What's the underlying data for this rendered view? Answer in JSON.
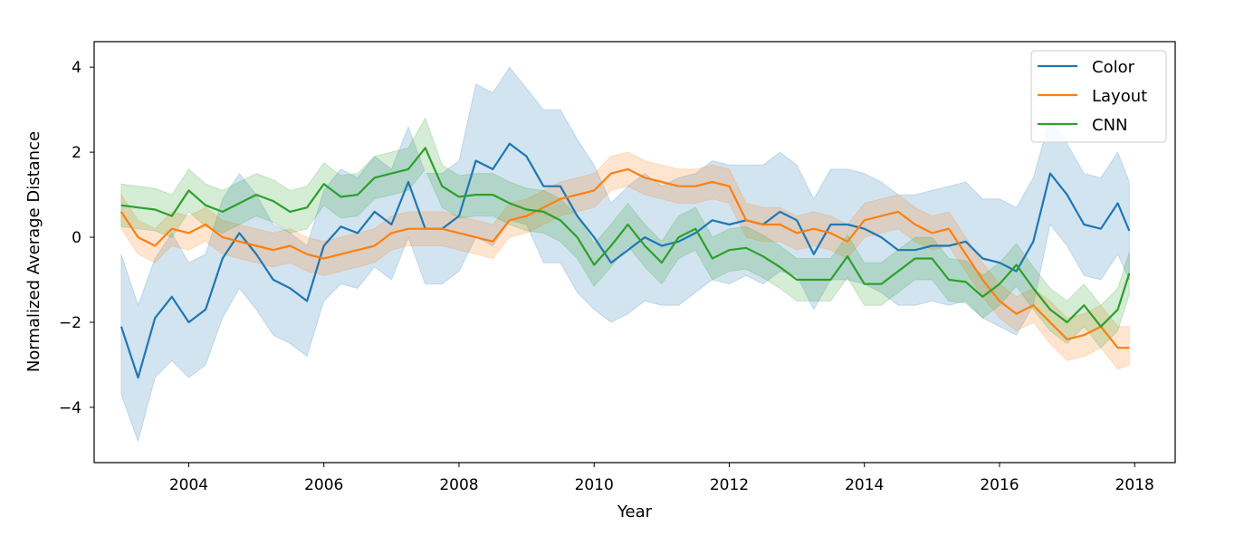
{
  "chart_data": {
    "type": "line",
    "title": "",
    "xlabel": "Year",
    "ylabel": "Normalized Average Distance",
    "xlim": [
      2002.6,
      2018.6
    ],
    "ylim": [
      -5.3,
      4.6
    ],
    "xticks": [
      2004,
      2006,
      2008,
      2010,
      2012,
      2014,
      2016,
      2018
    ],
    "xtick_labels": [
      "2004",
      "2006",
      "2008",
      "2010",
      "2012",
      "2014",
      "2016",
      "2018"
    ],
    "yticks": [
      -4,
      -2,
      0,
      2,
      4
    ],
    "ytick_labels": [
      "−4",
      "−2",
      "0",
      "2",
      "4"
    ],
    "grid": false,
    "legend_position": "top-right",
    "series": [
      {
        "name": "Color",
        "color": "#1f77b4",
        "x": [
          2003.0,
          2003.25,
          2003.5,
          2003.75,
          2004.0,
          2004.25,
          2004.5,
          2004.75,
          2005.0,
          2005.25,
          2005.5,
          2005.75,
          2006.0,
          2006.25,
          2006.5,
          2006.75,
          2007.0,
          2007.25,
          2007.5,
          2007.75,
          2008.0,
          2008.25,
          2008.5,
          2008.75,
          2009.0,
          2009.25,
          2009.5,
          2009.75,
          2010.0,
          2010.25,
          2010.5,
          2010.75,
          2011.0,
          2011.25,
          2011.5,
          2011.75,
          2012.0,
          2012.25,
          2012.5,
          2012.75,
          2013.0,
          2013.25,
          2013.5,
          2013.75,
          2014.0,
          2014.25,
          2014.5,
          2014.75,
          2015.0,
          2015.25,
          2015.5,
          2015.75,
          2016.0,
          2016.25,
          2016.5,
          2016.75,
          2017.0,
          2017.25,
          2017.5,
          2017.75,
          2017.92
        ],
        "y": [
          -2.1,
          -3.3,
          -1.9,
          -1.4,
          -2.0,
          -1.7,
          -0.5,
          0.1,
          -0.4,
          -1.0,
          -1.2,
          -1.5,
          -0.2,
          0.25,
          0.1,
          0.6,
          0.3,
          1.3,
          0.2,
          0.2,
          0.5,
          1.8,
          1.6,
          2.2,
          1.9,
          1.2,
          1.2,
          0.5,
          0.0,
          -0.6,
          -0.3,
          0.0,
          -0.2,
          -0.1,
          0.1,
          0.4,
          0.3,
          0.4,
          0.3,
          0.6,
          0.4,
          -0.4,
          0.3,
          0.3,
          0.2,
          0.0,
          -0.3,
          -0.3,
          -0.2,
          -0.2,
          -0.1,
          -0.5,
          -0.6,
          -0.8,
          -0.1,
          1.5,
          1.0,
          0.3,
          0.2,
          0.8,
          0.15
        ],
        "lower": [
          -3.7,
          -4.8,
          -3.3,
          -2.9,
          -3.3,
          -3.0,
          -1.9,
          -1.2,
          -1.7,
          -2.3,
          -2.5,
          -2.8,
          -1.5,
          -1.1,
          -1.2,
          -0.7,
          -1.0,
          0.0,
          -1.1,
          -1.1,
          -0.8,
          0.0,
          -0.2,
          0.4,
          0.3,
          -0.6,
          -0.6,
          -1.3,
          -1.7,
          -2.0,
          -1.8,
          -1.5,
          -1.6,
          -1.6,
          -1.3,
          -1.0,
          -1.1,
          -0.9,
          -1.1,
          -0.8,
          -0.9,
          -1.7,
          -1.0,
          -1.0,
          -1.1,
          -1.3,
          -1.6,
          -1.6,
          -1.5,
          -1.6,
          -1.5,
          -1.9,
          -2.1,
          -2.3,
          -1.6,
          0.3,
          -0.2,
          -0.9,
          -1.0,
          -0.4,
          -1.0
        ],
        "upper": [
          -0.4,
          -1.6,
          -0.5,
          0.1,
          -0.6,
          -0.4,
          0.9,
          1.5,
          1.0,
          0.3,
          0.1,
          -0.2,
          1.1,
          1.6,
          1.4,
          1.9,
          1.6,
          2.6,
          1.5,
          1.5,
          1.8,
          3.6,
          3.4,
          4.0,
          3.5,
          3.0,
          3.0,
          2.3,
          1.7,
          0.8,
          1.2,
          1.5,
          1.2,
          1.4,
          1.5,
          1.8,
          1.7,
          1.7,
          1.7,
          2.0,
          1.7,
          0.9,
          1.6,
          1.6,
          1.5,
          1.3,
          1.0,
          1.0,
          1.1,
          1.2,
          1.3,
          0.9,
          0.9,
          0.7,
          1.4,
          2.8,
          2.2,
          1.5,
          1.4,
          2.0,
          1.3
        ]
      },
      {
        "name": "Layout",
        "color": "#ff7f0e",
        "x": [
          2003.0,
          2003.25,
          2003.5,
          2003.75,
          2004.0,
          2004.25,
          2004.5,
          2004.75,
          2005.0,
          2005.25,
          2005.5,
          2005.75,
          2006.0,
          2006.25,
          2006.5,
          2006.75,
          2007.0,
          2007.25,
          2007.5,
          2007.75,
          2008.0,
          2008.25,
          2008.5,
          2008.75,
          2009.0,
          2009.25,
          2009.5,
          2009.75,
          2010.0,
          2010.25,
          2010.5,
          2010.75,
          2011.0,
          2011.25,
          2011.5,
          2011.75,
          2012.0,
          2012.25,
          2012.5,
          2012.75,
          2013.0,
          2013.25,
          2013.5,
          2013.75,
          2014.0,
          2014.25,
          2014.5,
          2014.75,
          2015.0,
          2015.25,
          2015.5,
          2015.75,
          2016.0,
          2016.25,
          2016.5,
          2016.75,
          2017.0,
          2017.25,
          2017.5,
          2017.75,
          2017.92
        ],
        "y": [
          0.6,
          0.0,
          -0.2,
          0.2,
          0.1,
          0.3,
          0.0,
          -0.1,
          -0.2,
          -0.3,
          -0.2,
          -0.4,
          -0.5,
          -0.4,
          -0.3,
          -0.2,
          0.1,
          0.2,
          0.2,
          0.2,
          0.1,
          0.0,
          -0.1,
          0.4,
          0.5,
          0.7,
          0.9,
          1.0,
          1.1,
          1.5,
          1.6,
          1.4,
          1.3,
          1.2,
          1.2,
          1.3,
          1.2,
          0.4,
          0.3,
          0.3,
          0.1,
          0.2,
          0.1,
          -0.1,
          0.4,
          0.5,
          0.6,
          0.3,
          0.1,
          0.2,
          -0.4,
          -1.0,
          -1.5,
          -1.8,
          -1.6,
          -2.0,
          -2.4,
          -2.3,
          -2.1,
          -2.6,
          -2.6
        ],
        "lower": [
          0.2,
          -0.4,
          -0.6,
          -0.2,
          -0.3,
          -0.1,
          -0.4,
          -0.5,
          -0.6,
          -0.7,
          -0.6,
          -0.8,
          -0.9,
          -0.8,
          -0.7,
          -0.6,
          -0.3,
          -0.2,
          -0.2,
          -0.2,
          -0.3,
          -0.4,
          -0.5,
          0.0,
          0.1,
          0.3,
          0.5,
          0.6,
          0.7,
          1.1,
          1.2,
          1.0,
          0.9,
          0.8,
          0.8,
          0.9,
          0.8,
          0.0,
          -0.1,
          -0.1,
          -0.3,
          -0.2,
          -0.3,
          -0.5,
          0.0,
          0.1,
          0.2,
          -0.1,
          -0.3,
          -0.2,
          -0.8,
          -1.4,
          -1.9,
          -2.2,
          -2.0,
          -2.5,
          -2.9,
          -2.8,
          -2.6,
          -3.1,
          -3.0
        ],
        "upper": [
          1.0,
          0.4,
          0.2,
          0.6,
          0.5,
          0.7,
          0.4,
          0.3,
          0.2,
          0.1,
          0.2,
          0.0,
          -0.1,
          0.0,
          0.1,
          0.2,
          0.5,
          0.6,
          0.6,
          0.6,
          0.5,
          0.4,
          0.3,
          0.8,
          0.9,
          1.1,
          1.3,
          1.4,
          1.5,
          1.9,
          2.0,
          1.8,
          1.7,
          1.6,
          1.6,
          1.7,
          1.6,
          0.8,
          0.7,
          0.7,
          0.5,
          0.6,
          0.5,
          0.3,
          0.8,
          0.9,
          1.0,
          0.7,
          0.5,
          0.6,
          0.0,
          -0.6,
          -1.1,
          -1.4,
          -1.2,
          -1.5,
          -1.9,
          -1.8,
          -1.6,
          -2.1,
          -2.1
        ]
      },
      {
        "name": "CNN",
        "color": "#2ca02c",
        "x": [
          2003.0,
          2003.25,
          2003.5,
          2003.75,
          2004.0,
          2004.25,
          2004.5,
          2004.75,
          2005.0,
          2005.25,
          2005.5,
          2005.75,
          2006.0,
          2006.25,
          2006.5,
          2006.75,
          2007.0,
          2007.25,
          2007.5,
          2007.75,
          2008.0,
          2008.25,
          2008.5,
          2008.75,
          2009.0,
          2009.25,
          2009.5,
          2009.75,
          2010.0,
          2010.25,
          2010.5,
          2010.75,
          2011.0,
          2011.25,
          2011.5,
          2011.75,
          2012.0,
          2012.25,
          2012.5,
          2012.75,
          2013.0,
          2013.25,
          2013.5,
          2013.75,
          2014.0,
          2014.25,
          2014.5,
          2014.75,
          2015.0,
          2015.25,
          2015.5,
          2015.75,
          2016.0,
          2016.25,
          2016.5,
          2016.75,
          2017.0,
          2017.25,
          2017.5,
          2017.75,
          2017.92
        ],
        "y": [
          0.75,
          0.7,
          0.65,
          0.5,
          1.1,
          0.75,
          0.6,
          0.8,
          1.0,
          0.85,
          0.6,
          0.7,
          1.25,
          0.95,
          1.0,
          1.4,
          1.5,
          1.6,
          2.1,
          1.2,
          0.95,
          1.0,
          1.0,
          0.8,
          0.65,
          0.6,
          0.4,
          0.0,
          -0.65,
          -0.2,
          0.3,
          -0.2,
          -0.6,
          0.0,
          0.2,
          -0.5,
          -0.3,
          -0.25,
          -0.45,
          -0.7,
          -1.0,
          -1.0,
          -1.0,
          -0.45,
          -1.1,
          -1.1,
          -0.8,
          -0.5,
          -0.5,
          -1.0,
          -1.05,
          -1.4,
          -1.1,
          -0.65,
          -1.2,
          -1.7,
          -2.0,
          -1.6,
          -2.1,
          -1.7,
          -0.85
        ],
        "lower": [
          0.25,
          0.2,
          0.15,
          0.0,
          0.6,
          0.25,
          0.1,
          0.3,
          0.5,
          0.35,
          0.1,
          0.2,
          0.75,
          0.45,
          0.5,
          0.9,
          1.0,
          1.1,
          1.6,
          0.7,
          0.45,
          0.5,
          0.5,
          0.3,
          0.15,
          0.1,
          -0.1,
          -0.5,
          -1.15,
          -0.7,
          -0.2,
          -0.7,
          -1.1,
          -0.5,
          -0.3,
          -1.0,
          -0.8,
          -0.75,
          -0.95,
          -1.2,
          -1.5,
          -1.5,
          -1.5,
          -0.95,
          -1.6,
          -1.6,
          -1.3,
          -1.0,
          -1.0,
          -1.5,
          -1.55,
          -1.9,
          -1.6,
          -1.15,
          -1.7,
          -2.2,
          -2.5,
          -2.1,
          -2.6,
          -2.2,
          -1.35
        ],
        "upper": [
          1.25,
          1.2,
          1.15,
          1.0,
          1.6,
          1.25,
          1.1,
          1.3,
          1.5,
          1.35,
          1.1,
          1.2,
          1.75,
          1.45,
          1.5,
          1.9,
          2.0,
          2.1,
          2.8,
          1.7,
          1.45,
          1.5,
          1.5,
          1.3,
          1.15,
          1.1,
          0.9,
          0.5,
          -0.15,
          0.3,
          0.8,
          0.3,
          -0.1,
          0.5,
          0.7,
          0.0,
          0.2,
          0.25,
          0.05,
          -0.2,
          -0.5,
          -0.5,
          -0.5,
          0.05,
          -0.6,
          -0.6,
          -0.3,
          0.0,
          0.0,
          -0.5,
          -0.55,
          -0.9,
          -0.6,
          -0.15,
          -0.7,
          -1.2,
          -1.5,
          -1.1,
          -1.6,
          -1.2,
          -0.35
        ]
      }
    ]
  }
}
